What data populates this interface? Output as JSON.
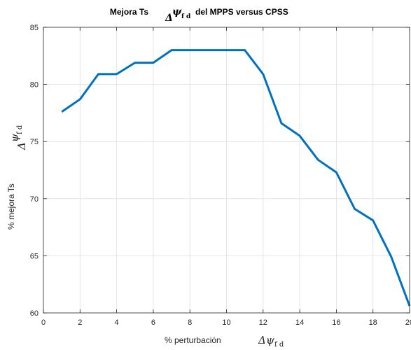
{
  "chart_data": {
    "type": "line",
    "title": {
      "prefix": "Mejora Ts",
      "delta": "Δ",
      "symbol": "ψ",
      "subscript": "f d",
      "suffix": "del MPPS versus CPSS"
    },
    "xlabel": {
      "text": "% perturbación",
      "delta": "Δ",
      "symbol": "ψ",
      "subscript": "f d"
    },
    "ylabel": {
      "text": "% mejora Ts",
      "delta": "Δ",
      "symbol": "ψ",
      "subscript": "f d"
    },
    "xlim": [
      0,
      20
    ],
    "ylim": [
      60,
      85
    ],
    "xticks": [
      0,
      2,
      4,
      6,
      8,
      10,
      12,
      14,
      16,
      18,
      20
    ],
    "yticks": [
      60,
      65,
      70,
      75,
      80,
      85
    ],
    "grid": true,
    "series": [
      {
        "color": "#0072bd",
        "x": [
          1,
          2,
          3,
          4,
          5,
          6,
          7,
          8,
          9,
          10,
          11,
          12,
          13,
          14,
          15,
          16,
          17,
          18,
          19,
          20
        ],
        "y": [
          77.6,
          78.7,
          80.9,
          80.9,
          81.9,
          81.9,
          83.0,
          83.0,
          83.0,
          83.0,
          83.0,
          80.9,
          76.6,
          75.5,
          73.4,
          72.3,
          69.1,
          68.1,
          64.9,
          60.6
        ]
      }
    ]
  }
}
